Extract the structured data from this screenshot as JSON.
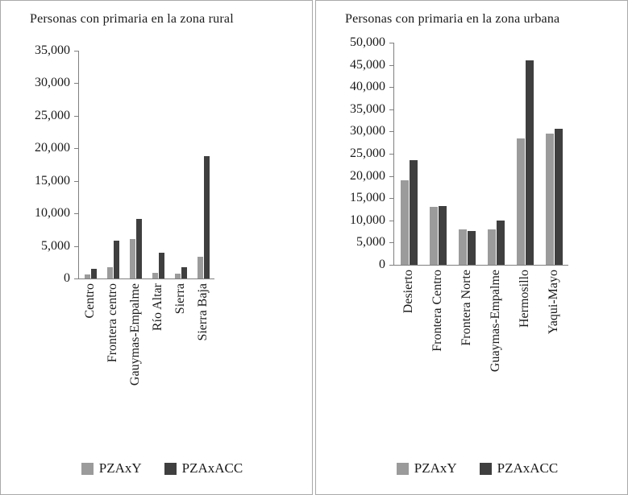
{
  "chart_data": [
    {
      "type": "bar",
      "title": "Personas con primaria en la zona rural",
      "categories": [
        "Centro",
        "Frontera centro",
        "Gauymas-Empalme",
        "Río Altar",
        "Sierra",
        "Sierra Baja"
      ],
      "series": [
        {
          "name": "PZAxY",
          "color": "#9b9b9b",
          "values": [
            600,
            1700,
            6100,
            900,
            800,
            3300
          ]
        },
        {
          "name": "PZAxACC",
          "color": "#3f3f3f",
          "values": [
            1500,
            5800,
            9200,
            4000,
            1700,
            18800
          ]
        }
      ],
      "xlabel": "",
      "ylabel": "",
      "ylim": [
        0,
        35000
      ],
      "ytick_step": 5000,
      "ytick_labels": [
        "35,000",
        "30,000",
        "25,000",
        "20,000",
        "15,000",
        "10,000",
        "5,000",
        "0"
      ],
      "grid": false,
      "legend_position": "bottom"
    },
    {
      "type": "bar",
      "title": "Personas con primaria en la zona urbana",
      "categories": [
        "Desierto",
        "Frontera Centro",
        "Frontera Norte",
        "Guaymas-Empalme",
        "Hermosillo",
        "Yaqui-Mayo"
      ],
      "series": [
        {
          "name": "PZAxY",
          "color": "#9b9b9b",
          "values": [
            19000,
            13000,
            8000,
            8000,
            28500,
            29500
          ]
        },
        {
          "name": "PZAxACC",
          "color": "#3f3f3f",
          "values": [
            23500,
            13200,
            7700,
            10000,
            46000,
            30700
          ]
        }
      ],
      "xlabel": "",
      "ylabel": "",
      "ylim": [
        0,
        50000
      ],
      "ytick_step": 5000,
      "ytick_labels": [
        "50,000",
        "45,000",
        "40,000",
        "35,000",
        "30,000",
        "25,000",
        "20,000",
        "15,000",
        "10,000",
        "5,000",
        "0"
      ],
      "grid": false,
      "legend_position": "bottom"
    }
  ]
}
